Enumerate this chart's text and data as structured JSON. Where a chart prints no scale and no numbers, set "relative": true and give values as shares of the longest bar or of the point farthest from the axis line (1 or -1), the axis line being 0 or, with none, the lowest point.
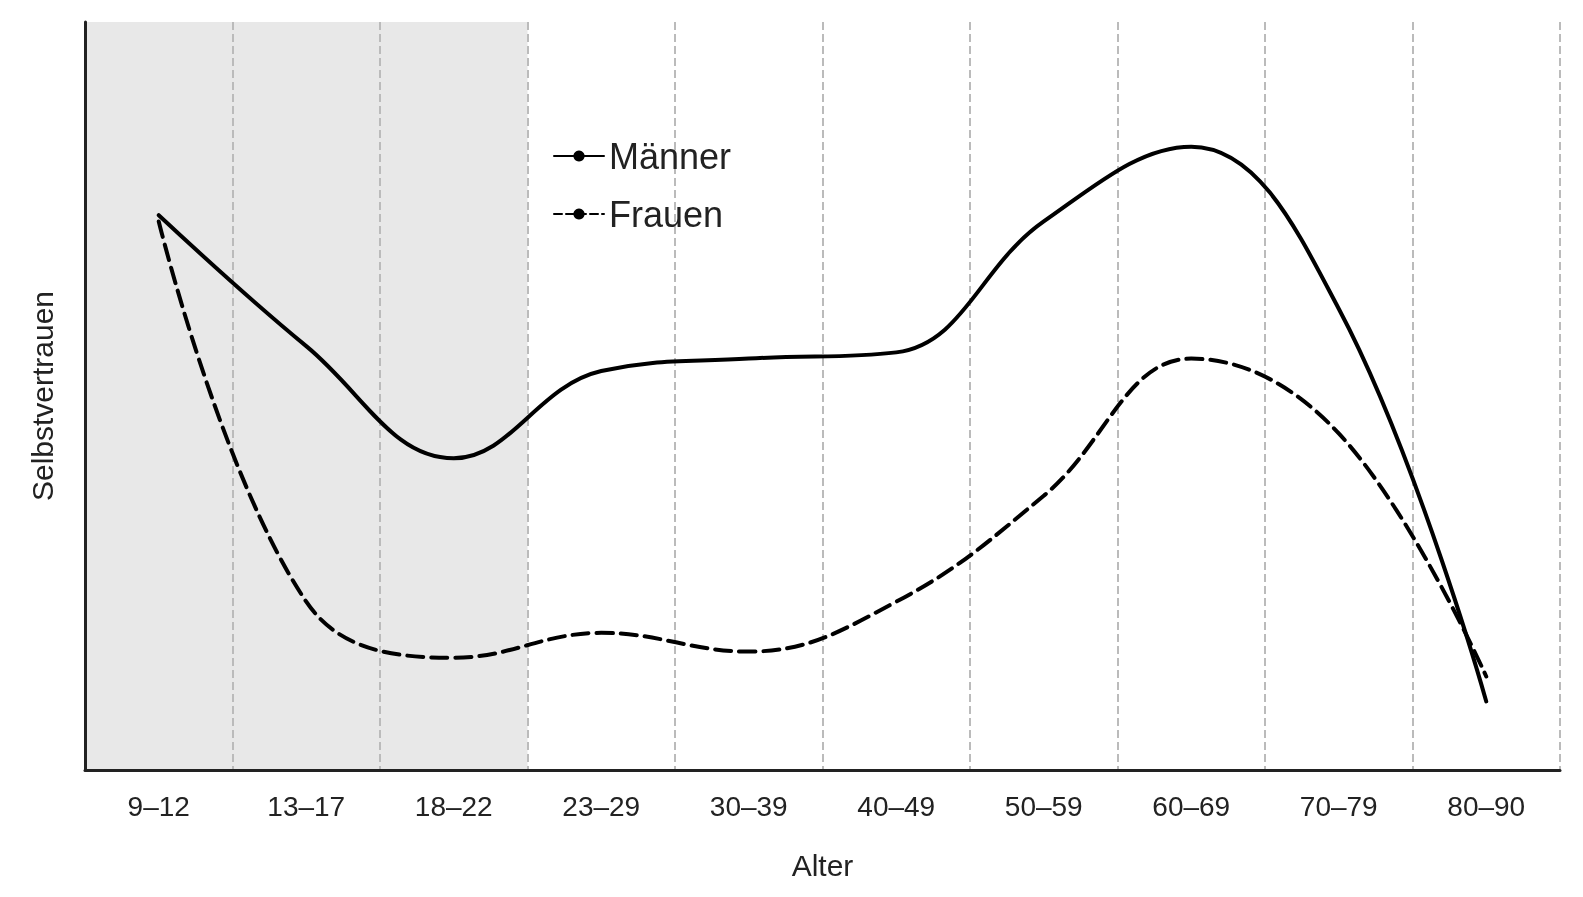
{
  "chart_data": {
    "type": "line",
    "relative": true,
    "xlabel": "Alter",
    "ylabel": "Selbstvertrauen",
    "categories": [
      "9–12",
      "13–17",
      "18–22",
      "23–29",
      "30–39",
      "40–49",
      "50–59",
      "60–69",
      "70–79",
      "80–90"
    ],
    "series": [
      {
        "name": "Männer",
        "color": "#000000",
        "line_style": "solid",
        "values": [
          0.89,
          0.68,
          0.5,
          0.64,
          0.66,
          0.67,
          0.88,
          1.0,
          0.74,
          0.11
        ]
      },
      {
        "name": "Frauen",
        "color": "#000000",
        "line_style": "dashed",
        "values": [
          0.88,
          0.27,
          0.18,
          0.22,
          0.19,
          0.27,
          0.44,
          0.66,
          0.54,
          0.15
        ]
      }
    ],
    "bands": [
      {
        "axis": "x",
        "from": "9–12",
        "to": "18–22",
        "color": "#e8e8e8"
      }
    ],
    "grid": "x",
    "legend": "top",
    "marker": "none"
  }
}
